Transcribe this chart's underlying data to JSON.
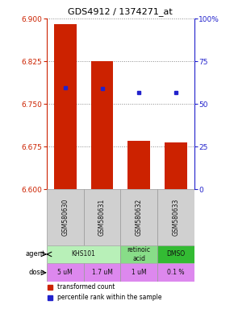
{
  "title": "GDS4912 / 1374271_at",
  "samples": [
    "GSM580630",
    "GSM580631",
    "GSM580632",
    "GSM580633"
  ],
  "bar_values": [
    6.89,
    6.825,
    6.685,
    6.682
  ],
  "bar_bottom": 6.6,
  "percentile_values": [
    0.595,
    0.588,
    0.568,
    0.568
  ],
  "ylim_left": [
    6.6,
    6.9
  ],
  "ylim_right": [
    0,
    1.0
  ],
  "yticks_left": [
    6.6,
    6.675,
    6.75,
    6.825,
    6.9
  ],
  "yticks_right": [
    0,
    0.25,
    0.5,
    0.75,
    1.0
  ],
  "ytick_labels_right": [
    "0",
    "25",
    "50",
    "75",
    "100%"
  ],
  "bar_color": "#cc2200",
  "dot_color": "#2222cc",
  "agent_data": [
    {
      "cols": [
        0,
        1
      ],
      "label": "KHS101",
      "color": "#b8f0b8"
    },
    {
      "cols": [
        2
      ],
      "label": "retinoic\nacid",
      "color": "#88dd88"
    },
    {
      "cols": [
        3
      ],
      "label": "DMSO",
      "color": "#33bb33"
    }
  ],
  "dose_labels": [
    "5 uM",
    "1.7 uM",
    "1 uM",
    "0.1 %"
  ],
  "dose_color": "#dd88ee",
  "grid_color": "#888888",
  "left_tick_color": "#cc2200",
  "right_tick_color": "#2222cc",
  "legend_red": "transformed count",
  "legend_blue": "percentile rank within the sample",
  "bar_width": 0.6
}
